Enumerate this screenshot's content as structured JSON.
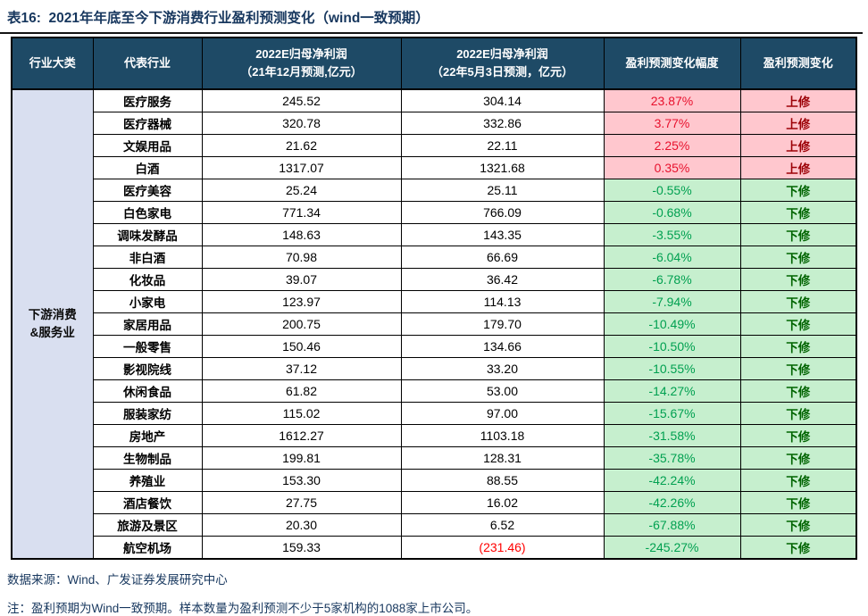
{
  "title": "表16:  2021年年底至今下游消费行业盈利预测变化（wind一致预期）",
  "table": {
    "columns": [
      {
        "label": "行业大类"
      },
      {
        "label": "代表行业"
      },
      {
        "line1": "2022E归母净利润",
        "line2": "（21年12月预测,亿元）"
      },
      {
        "line1": "2022E归母净利润",
        "line2": "（22年5月3日预测，亿元）"
      },
      {
        "label": "盈利预测变化幅度"
      },
      {
        "label": "盈利预测变化"
      }
    ],
    "group": {
      "line1": "下游消费",
      "line2": "&服务业"
    },
    "rows": [
      {
        "industry": "医疗服务",
        "dec_forecast": "245.52",
        "may_forecast": "304.14",
        "may_negative": false,
        "change_pct": "23.87%",
        "direction": "上修",
        "trend": "up"
      },
      {
        "industry": "医疗器械",
        "dec_forecast": "320.78",
        "may_forecast": "332.86",
        "may_negative": false,
        "change_pct": "3.77%",
        "direction": "上修",
        "trend": "up"
      },
      {
        "industry": "文娱用品",
        "dec_forecast": "21.62",
        "may_forecast": "22.11",
        "may_negative": false,
        "change_pct": "2.25%",
        "direction": "上修",
        "trend": "up"
      },
      {
        "industry": "白酒",
        "dec_forecast": "1317.07",
        "may_forecast": "1321.68",
        "may_negative": false,
        "change_pct": "0.35%",
        "direction": "上修",
        "trend": "up"
      },
      {
        "industry": "医疗美容",
        "dec_forecast": "25.24",
        "may_forecast": "25.11",
        "may_negative": false,
        "change_pct": "-0.55%",
        "direction": "下修",
        "trend": "down"
      },
      {
        "industry": "白色家电",
        "dec_forecast": "771.34",
        "may_forecast": "766.09",
        "may_negative": false,
        "change_pct": "-0.68%",
        "direction": "下修",
        "trend": "down"
      },
      {
        "industry": "调味发酵品",
        "dec_forecast": "148.63",
        "may_forecast": "143.35",
        "may_negative": false,
        "change_pct": "-3.55%",
        "direction": "下修",
        "trend": "down"
      },
      {
        "industry": "非白酒",
        "dec_forecast": "70.98",
        "may_forecast": "66.69",
        "may_negative": false,
        "change_pct": "-6.04%",
        "direction": "下修",
        "trend": "down"
      },
      {
        "industry": "化妆品",
        "dec_forecast": "39.07",
        "may_forecast": "36.42",
        "may_negative": false,
        "change_pct": "-6.78%",
        "direction": "下修",
        "trend": "down"
      },
      {
        "industry": "小家电",
        "dec_forecast": "123.97",
        "may_forecast": "114.13",
        "may_negative": false,
        "change_pct": "-7.94%",
        "direction": "下修",
        "trend": "down"
      },
      {
        "industry": "家居用品",
        "dec_forecast": "200.75",
        "may_forecast": "179.70",
        "may_negative": false,
        "change_pct": "-10.49%",
        "direction": "下修",
        "trend": "down"
      },
      {
        "industry": "一般零售",
        "dec_forecast": "150.46",
        "may_forecast": "134.66",
        "may_negative": false,
        "change_pct": "-10.50%",
        "direction": "下修",
        "trend": "down"
      },
      {
        "industry": "影视院线",
        "dec_forecast": "37.12",
        "may_forecast": "33.20",
        "may_negative": false,
        "change_pct": "-10.55%",
        "direction": "下修",
        "trend": "down"
      },
      {
        "industry": "休闲食品",
        "dec_forecast": "61.82",
        "may_forecast": "53.00",
        "may_negative": false,
        "change_pct": "-14.27%",
        "direction": "下修",
        "trend": "down"
      },
      {
        "industry": "服装家纺",
        "dec_forecast": "115.02",
        "may_forecast": "97.00",
        "may_negative": false,
        "change_pct": "-15.67%",
        "direction": "下修",
        "trend": "down"
      },
      {
        "industry": "房地产",
        "dec_forecast": "1612.27",
        "may_forecast": "1103.18",
        "may_negative": false,
        "change_pct": "-31.58%",
        "direction": "下修",
        "trend": "down"
      },
      {
        "industry": "生物制品",
        "dec_forecast": "199.81",
        "may_forecast": "128.31",
        "may_negative": false,
        "change_pct": "-35.78%",
        "direction": "下修",
        "trend": "down"
      },
      {
        "industry": "养殖业",
        "dec_forecast": "153.30",
        "may_forecast": "88.55",
        "may_negative": false,
        "change_pct": "-42.24%",
        "direction": "下修",
        "trend": "down"
      },
      {
        "industry": "酒店餐饮",
        "dec_forecast": "27.75",
        "may_forecast": "16.02",
        "may_negative": false,
        "change_pct": "-42.26%",
        "direction": "下修",
        "trend": "down"
      },
      {
        "industry": "旅游及景区",
        "dec_forecast": "20.30",
        "may_forecast": "6.52",
        "may_negative": false,
        "change_pct": "-67.88%",
        "direction": "下修",
        "trend": "down"
      },
      {
        "industry": "航空机场",
        "dec_forecast": "159.33",
        "may_forecast": "(231.46)",
        "may_negative": true,
        "change_pct": "-245.27%",
        "direction": "下修",
        "trend": "down"
      }
    ]
  },
  "footer": {
    "source": "数据来源：Wind、广发证券发展研究中心",
    "note": "注：盈利预期为Wind一致预期。样本数量为盈利预测不少于5家机构的1088家上市公司。"
  },
  "colors": {
    "header_bg": "#1E4A66",
    "group_bg": "#D9DFF0",
    "up_bg": "#FFC7CE",
    "down_bg": "#C6EFCE",
    "up_pct_text": "#E8112D",
    "up_dir_text": "#9C0006",
    "down_pct_text": "#00A050",
    "down_dir_text": "#006400",
    "title_text": "#17375E",
    "negative_number_text": "#FF0000"
  },
  "chart_data": {
    "type": "table",
    "title": "表16:  2021年年底至今下游消费行业盈利预测变化（wind一致预期）",
    "columns": [
      "行业大类",
      "代表行业",
      "2022E归母净利润（21年12月预测,亿元）",
      "2022E归母净利润（22年5月3日预测，亿元）",
      "盈利预测变化幅度",
      "盈利预测变化"
    ],
    "industry_group": "下游消费&服务业",
    "rows": [
      [
        "医疗服务",
        245.52,
        304.14,
        "23.87%",
        "上修"
      ],
      [
        "医疗器械",
        320.78,
        332.86,
        "3.77%",
        "上修"
      ],
      [
        "文娱用品",
        21.62,
        22.11,
        "2.25%",
        "上修"
      ],
      [
        "白酒",
        1317.07,
        1321.68,
        "0.35%",
        "上修"
      ],
      [
        "医疗美容",
        25.24,
        25.11,
        "-0.55%",
        "下修"
      ],
      [
        "白色家电",
        771.34,
        766.09,
        "-0.68%",
        "下修"
      ],
      [
        "调味发酵品",
        148.63,
        143.35,
        "-3.55%",
        "下修"
      ],
      [
        "非白酒",
        70.98,
        66.69,
        "-6.04%",
        "下修"
      ],
      [
        "化妆品",
        39.07,
        36.42,
        "-6.78%",
        "下修"
      ],
      [
        "小家电",
        123.97,
        114.13,
        "-7.94%",
        "下修"
      ],
      [
        "家居用品",
        200.75,
        179.7,
        "-10.49%",
        "下修"
      ],
      [
        "一般零售",
        150.46,
        134.66,
        "-10.50%",
        "下修"
      ],
      [
        "影视院线",
        37.12,
        33.2,
        "-10.55%",
        "下修"
      ],
      [
        "休闲食品",
        61.82,
        53.0,
        "-14.27%",
        "下修"
      ],
      [
        "服装家纺",
        115.02,
        97.0,
        "-15.67%",
        "下修"
      ],
      [
        "房地产",
        1612.27,
        1103.18,
        "-31.58%",
        "下修"
      ],
      [
        "生物制品",
        199.81,
        128.31,
        "-35.78%",
        "下修"
      ],
      [
        "养殖业",
        153.3,
        88.55,
        "-42.24%",
        "下修"
      ],
      [
        "酒店餐饮",
        27.75,
        16.02,
        "-42.26%",
        "下修"
      ],
      [
        "旅游及景区",
        20.3,
        6.52,
        "-67.88%",
        "下修"
      ],
      [
        "航空机场",
        159.33,
        -231.46,
        "-245.27%",
        "下修"
      ]
    ]
  }
}
